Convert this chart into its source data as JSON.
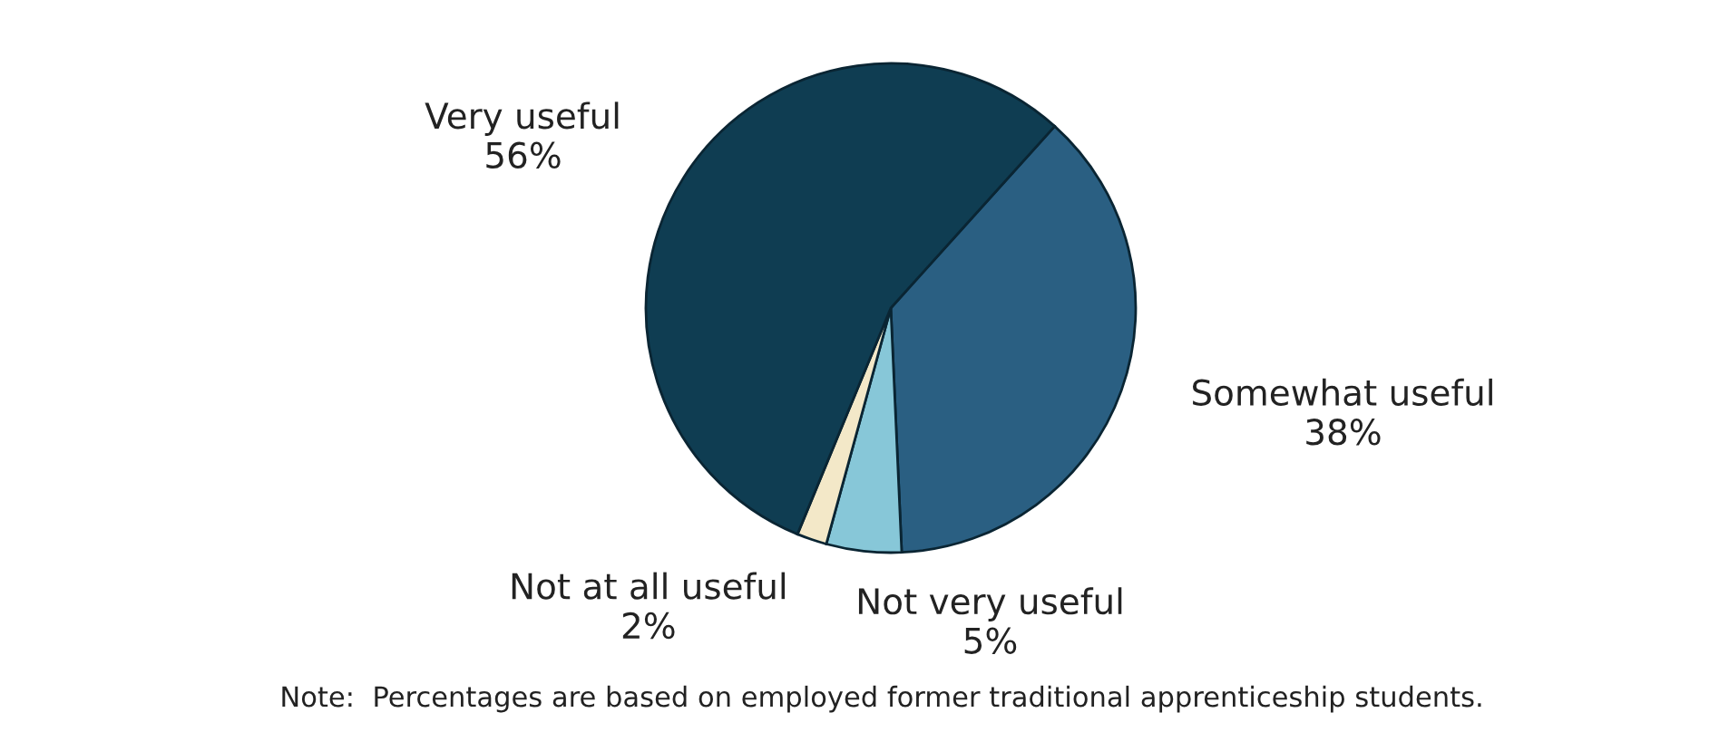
{
  "chart_data": {
    "type": "pie",
    "categories": [
      "Somewhat useful",
      "Not very useful",
      "Not at all useful",
      "Very useful"
    ],
    "values": [
      38,
      5,
      2,
      56
    ],
    "value_labels": [
      "38%",
      "5%",
      "2%",
      "56%"
    ],
    "colors": [
      "#2a5f82",
      "#87c7d8",
      "#f3e8c8",
      "#0f3d52"
    ],
    "annotations": [
      "Note:  Percentages are based on employed former traditional apprenticeship students."
    ]
  }
}
